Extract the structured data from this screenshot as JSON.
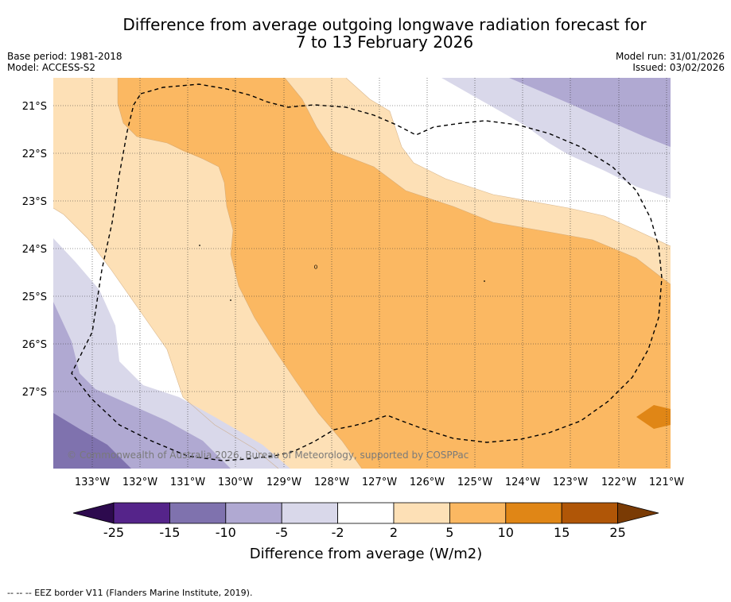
{
  "title": {
    "line1": "Difference from average outgoing longwave radiation forecast for",
    "line2": "7 to 13 February 2026"
  },
  "meta": {
    "base_period": "Base period: 1981-2018",
    "model": "Model: ACCESS-S2",
    "model_run": "Model run: 31/01/2026",
    "issued": "Issued: 03/02/2026"
  },
  "map": {
    "lat_labels": [
      "21°S",
      "22°S",
      "23°S",
      "24°S",
      "25°S",
      "26°S",
      "27°S"
    ],
    "lon_labels": [
      "133°W",
      "132°W",
      "131°W",
      "130°W",
      "129°W",
      "128°W",
      "127°W",
      "126°W",
      "125°W",
      "124°W",
      "123°W",
      "122°W",
      "121°W"
    ],
    "credit": "© Commonwealth of Australia 2026, Bureau of Meteorology, supported by COSPPac"
  },
  "legend": {
    "ticks": [
      "-25",
      "-15",
      "-10",
      "-5",
      "-2",
      "2",
      "5",
      "10",
      "15",
      "25"
    ],
    "colors": [
      "#2d0a4e",
      "#55248a",
      "#7f72ae",
      "#b0a9d2",
      "#d9d8ea",
      "#ffffff",
      "#fde0b6",
      "#fbb862",
      "#e08616",
      "#b05607",
      "#7a3b05"
    ],
    "label": "Difference from average (W/m2)"
  },
  "footer": {
    "eez_note": "--  --  -- EEZ border V11 (Flanders Marine Institute, 2019)."
  }
}
